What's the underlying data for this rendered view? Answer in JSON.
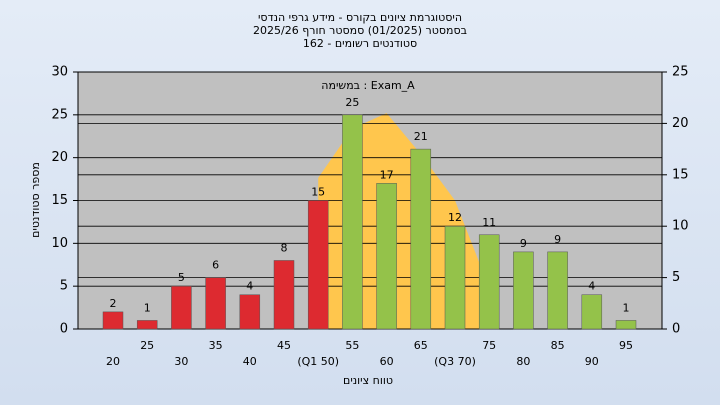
{
  "chart_data": {
    "type": "bar",
    "title": [
      "היסטוגרמת ציונים בקורס - מידע גרפי הנדסי",
      "בסמסטר  (01/2025)  סמסטר חורף 2025/26",
      "סטודנטים רשומים - 162"
    ],
    "annotation": "במשימה : Exam_A",
    "x_label": "טווח ציונים",
    "y_label": "מספר סטודנטים",
    "categories": [
      "20",
      "25",
      "30",
      "35",
      "40",
      "45",
      "(Q1 50)",
      "55",
      "60",
      "65",
      "(Q3 70)",
      "75",
      "80",
      "85",
      "90",
      "95"
    ],
    "values": [
      2,
      1,
      5,
      6,
      4,
      8,
      15,
      25,
      17,
      21,
      12,
      11,
      9,
      9,
      4,
      1
    ],
    "colors": [
      "#dd2a30",
      "#dd2a30",
      "#dd2a30",
      "#dd2a30",
      "#dd2a30",
      "#dd2a30",
      "#dd2a30",
      "#94c24a",
      "#94c24a",
      "#94c24a",
      "#94c24a",
      "#94c24a",
      "#94c24a",
      "#94c24a",
      "#94c24a",
      "#94c24a"
    ],
    "curve": {
      "color": "#ffc64d",
      "axis": "y2",
      "values": [
        null,
        null,
        null,
        null,
        null,
        null,
        14.7,
        19.5,
        21,
        17,
        12.5,
        4,
        null,
        null,
        null,
        null
      ]
    },
    "ylim": [
      0,
      30
    ],
    "yticks": [
      0,
      5,
      10,
      15,
      20,
      25,
      30
    ],
    "y2lim": [
      0,
      25
    ],
    "y2ticks": [
      0,
      5,
      10,
      15,
      20,
      25
    ],
    "grid": true
  }
}
